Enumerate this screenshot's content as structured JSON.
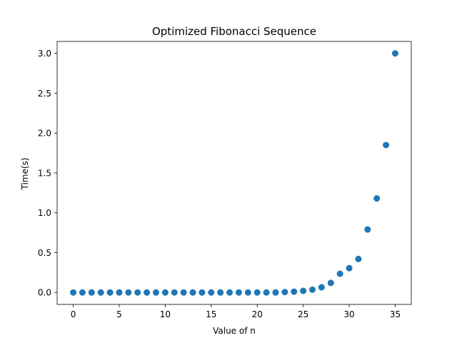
{
  "chart_data": {
    "type": "scatter",
    "title": "Optimized Fibonacci Sequence",
    "xlabel": "Value of n",
    "ylabel": "Time(s)",
    "xlim": [
      -1.75,
      36.75
    ],
    "ylim": [
      -0.15,
      3.15
    ],
    "xticks": [
      0,
      5,
      10,
      15,
      20,
      25,
      30,
      35
    ],
    "yticks": [
      0.0,
      0.5,
      1.0,
      1.5,
      2.0,
      2.5,
      3.0
    ],
    "xtick_labels": [
      "0",
      "5",
      "10",
      "15",
      "20",
      "25",
      "30",
      "35"
    ],
    "ytick_labels": [
      "0.0",
      "0.5",
      "1.0",
      "1.5",
      "2.0",
      "2.5",
      "3.0"
    ],
    "grid": false,
    "series": [
      {
        "color": "#1f77b4",
        "x": [
          0,
          1,
          2,
          3,
          4,
          5,
          6,
          7,
          8,
          9,
          10,
          11,
          12,
          13,
          14,
          15,
          16,
          17,
          18,
          19,
          20,
          21,
          22,
          23,
          24,
          25,
          26,
          27,
          28,
          29,
          30,
          31,
          32,
          33,
          34,
          35
        ],
        "y": [
          0,
          0,
          0,
          0,
          0,
          0,
          0,
          0,
          0,
          0,
          0,
          0,
          0,
          0,
          0,
          0,
          0,
          0,
          0,
          0,
          0,
          0,
          0,
          0.005,
          0.01,
          0.02,
          0.035,
          0.065,
          0.12,
          0.235,
          0.305,
          0.42,
          0.79,
          1.18,
          1.85,
          3.0
        ]
      }
    ]
  }
}
